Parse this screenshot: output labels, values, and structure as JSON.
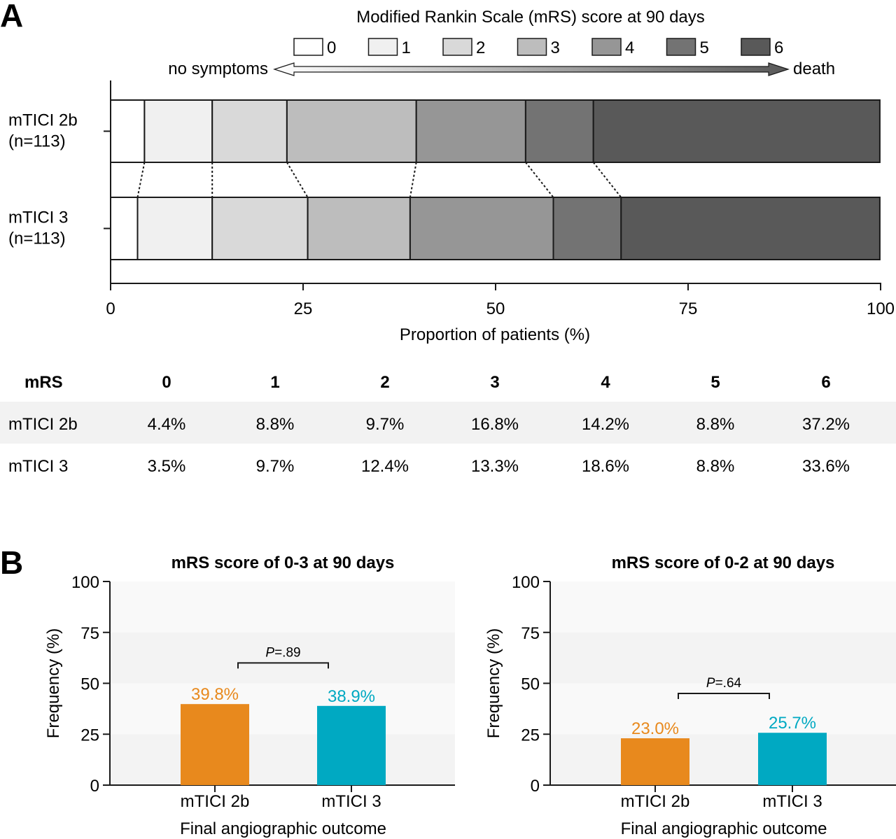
{
  "panel_a": {
    "letter": "A",
    "legend": {
      "title": "Modified Rankin Scale (mRS) score at 90 days",
      "scores": [
        "0",
        "1",
        "2",
        "3",
        "4",
        "5",
        "6"
      ],
      "left_label": "no symptoms",
      "right_label": "death"
    },
    "table": {
      "header_label": "mRS",
      "columns": [
        "0",
        "1",
        "2",
        "3",
        "4",
        "5",
        "6"
      ],
      "rows": [
        {
          "label": "mTICI 2b",
          "cells": [
            "4.4%",
            "8.8%",
            "9.7%",
            "16.8%",
            "14.2%",
            "8.8%",
            "37.2%"
          ]
        },
        {
          "label": "mTICI 3",
          "cells": [
            "3.5%",
            "9.7%",
            "12.4%",
            "13.3%",
            "18.6%",
            "8.8%",
            "33.6%"
          ]
        }
      ]
    }
  },
  "panel_b": {
    "letter": "B"
  },
  "colors": {
    "mrs": [
      "#ffffff",
      "#f0f0f0",
      "#d9d9d9",
      "#bdbdbd",
      "#969696",
      "#737373",
      "#595959"
    ],
    "orange": "#e8891d",
    "teal": "#00a9c2",
    "table_stripe": "#f2f2f2"
  },
  "chart_data": [
    {
      "type": "bar",
      "orientation": "horizontal",
      "stacked": true,
      "title": "",
      "xlabel": "Proportion of patients (%)",
      "ylabel": "",
      "xlim": [
        0,
        100
      ],
      "xticks": [
        "0",
        "25",
        "50",
        "75",
        "100"
      ],
      "categories": [
        "mTICI 2b\n(n=113)",
        "mTICI 3\n(n=113)"
      ],
      "category_lines": [
        [
          "mTICI 2b",
          "(n=113)"
        ],
        [
          "mTICI 3",
          "(n=113)"
        ]
      ],
      "series": [
        {
          "name": "0",
          "values": [
            4.4,
            3.5
          ]
        },
        {
          "name": "1",
          "values": [
            8.8,
            9.7
          ]
        },
        {
          "name": "2",
          "values": [
            9.7,
            12.4
          ]
        },
        {
          "name": "3",
          "values": [
            16.8,
            13.3
          ]
        },
        {
          "name": "4",
          "values": [
            14.2,
            18.6
          ]
        },
        {
          "name": "5",
          "values": [
            8.8,
            8.8
          ]
        },
        {
          "name": "6",
          "values": [
            37.2,
            33.6
          ]
        }
      ]
    },
    {
      "type": "bar",
      "title": "mRS score of 0-3 at 90 days",
      "xlabel": "Final angiographic outcome",
      "ylabel": "Frequency (%)",
      "ylim": [
        0,
        100
      ],
      "yticks": [
        "0",
        "25",
        "50",
        "75",
        "100"
      ],
      "categories": [
        "mTICI 2b",
        "mTICI 3"
      ],
      "values": [
        39.8,
        38.9
      ],
      "value_labels": [
        "39.8%",
        "38.9%"
      ],
      "p_value": {
        "prefix": "P",
        "text": "=.89",
        "level": 60
      }
    },
    {
      "type": "bar",
      "title": "mRS score of 0-2 at 90 days",
      "xlabel": "Final angiographic outcome",
      "ylabel": "Frequency (%)",
      "ylim": [
        0,
        100
      ],
      "yticks": [
        "0",
        "25",
        "50",
        "75",
        "100"
      ],
      "categories": [
        "mTICI 2b",
        "mTICI 3"
      ],
      "values": [
        23.0,
        25.7
      ],
      "value_labels": [
        "23.0%",
        "25.7%"
      ],
      "p_value": {
        "prefix": "P",
        "text": "=.64",
        "level": 45
      }
    }
  ]
}
